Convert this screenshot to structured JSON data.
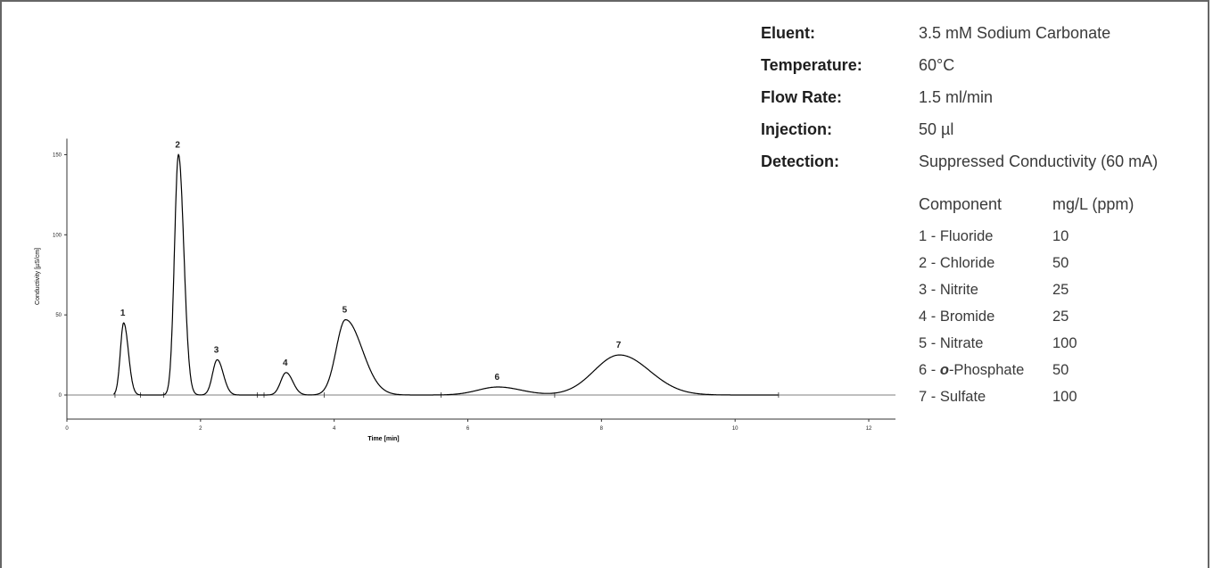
{
  "chart_data": {
    "type": "line",
    "title": "",
    "xlabel": "Time [min]",
    "ylabel": "Conductivity [µS/cm]",
    "xlim": [
      0,
      12.4
    ],
    "ylim": [
      -15,
      160
    ],
    "x_ticks": [
      "0",
      "2",
      "4",
      "6",
      "8",
      "10",
      "12"
    ],
    "y_ticks": [
      "0",
      "50",
      "100",
      "150"
    ],
    "grid": false,
    "peaks": [
      {
        "label": "1",
        "time": 0.85,
        "height": 45
      },
      {
        "label": "2",
        "time": 1.67,
        "height": 150
      },
      {
        "label": "3",
        "time": 2.25,
        "height": 22
      },
      {
        "label": "4",
        "time": 3.28,
        "height": 14
      },
      {
        "label": "5",
        "time": 4.17,
        "height": 47
      },
      {
        "label": "6",
        "time": 6.45,
        "height": 5
      },
      {
        "label": "7",
        "time": 8.27,
        "height": 25
      }
    ]
  },
  "conditions": [
    {
      "label": "Eluent:",
      "value": "3.5 mM Sodium Carbonate"
    },
    {
      "label": "Temperature:",
      "value": "60°C"
    },
    {
      "label": "Flow Rate:",
      "value": "1.5 ml/min"
    },
    {
      "label": "Injection:",
      "value": "50 µl"
    },
    {
      "label": "Detection:",
      "value": "Suppressed Conductivity (60 mA)"
    }
  ],
  "components": {
    "header": {
      "name": "Component",
      "conc": "mg/L (ppm)"
    },
    "rows": [
      {
        "prefix": "1 - ",
        "emph": "",
        "name": "Fluoride",
        "conc": "10"
      },
      {
        "prefix": "2 - ",
        "emph": "",
        "name": "Chloride",
        "conc": "50"
      },
      {
        "prefix": "3 - ",
        "emph": "",
        "name": "Nitrite",
        "conc": "25"
      },
      {
        "prefix": "4 - ",
        "emph": "",
        "name": "Bromide",
        "conc": "25"
      },
      {
        "prefix": "5 - ",
        "emph": "",
        "name": "Nitrate",
        "conc": "100"
      },
      {
        "prefix": "6 - ",
        "emph": "o",
        "name": "-Phosphate",
        "conc": "50"
      },
      {
        "prefix": "7 - ",
        "emph": "",
        "name": "Sulfate",
        "conc": "100"
      }
    ]
  },
  "colors": {
    "trace": "#000000",
    "axis": "#333333",
    "frame": "#666666"
  }
}
